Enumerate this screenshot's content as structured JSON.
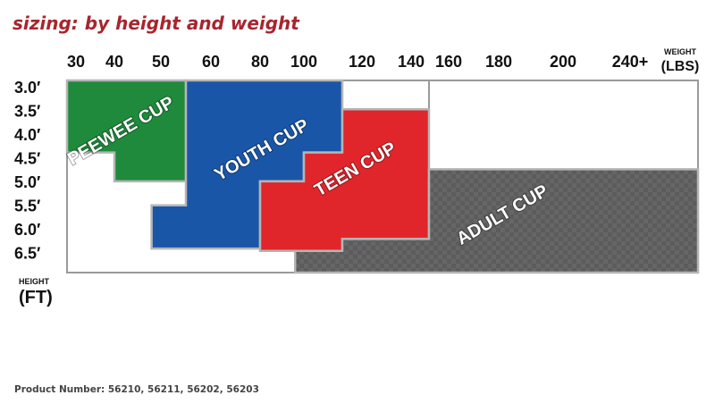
{
  "title": "sizing: by height and weight",
  "product_number": "Product Number: 56210, 56211, 56202, 56203",
  "chart_data": {
    "type": "size-chart",
    "x_axis": {
      "label_line1": "WEIGHT",
      "label_line2": "(LBS)",
      "ticks": [
        "30",
        "40",
        "50",
        "60",
        "80",
        "100",
        "120",
        "140",
        "160",
        "180",
        "200",
        "240+"
      ]
    },
    "y_axis": {
      "label_line1": "HEIGHT",
      "label_line2": "(FT)",
      "ticks": [
        "3.0′",
        "3.5′",
        "4.0′",
        "4.5′",
        "5.0′",
        "5.5′",
        "6.0′",
        "6.5′"
      ]
    },
    "zones": [
      {
        "name": "PEEWEE CUP",
        "color": "#1f8a3c",
        "region": [
          [
            25,
            3.0
          ],
          [
            55,
            3.0
          ],
          [
            55,
            5.1
          ],
          [
            40,
            5.1
          ],
          [
            40,
            4.5
          ],
          [
            25,
            4.5
          ]
        ]
      },
      {
        "name": "YOUTH CUP",
        "color": "#1a56a8",
        "region": [
          [
            55,
            3.0
          ],
          [
            110,
            3.0
          ],
          [
            110,
            4.5
          ],
          [
            100,
            4.5
          ],
          [
            100,
            5.1
          ],
          [
            80,
            5.1
          ],
          [
            80,
            6.5
          ],
          [
            48,
            6.5
          ],
          [
            48,
            5.6
          ],
          [
            55,
            5.6
          ]
        ]
      },
      {
        "name": "TEEN CUP",
        "color": "#e0262b",
        "region": [
          [
            110,
            3.6
          ],
          [
            145,
            3.6
          ],
          [
            145,
            6.3
          ],
          [
            110,
            6.3
          ],
          [
            110,
            6.55
          ],
          [
            80,
            6.55
          ],
          [
            80,
            5.1
          ],
          [
            100,
            5.1
          ],
          [
            100,
            4.5
          ],
          [
            110,
            4.5
          ]
        ]
      },
      {
        "name": "ADULT CUP",
        "color": "#666666",
        "region": [
          [
            145,
            4.85
          ],
          [
            250,
            4.85
          ],
          [
            250,
            7.0
          ],
          [
            96,
            7.0
          ],
          [
            96,
            6.55
          ],
          [
            110,
            6.55
          ],
          [
            110,
            6.3
          ],
          [
            145,
            6.3
          ]
        ]
      }
    ],
    "x_range": [
      25,
      250
    ],
    "y_range": [
      3.0,
      7.0
    ]
  }
}
